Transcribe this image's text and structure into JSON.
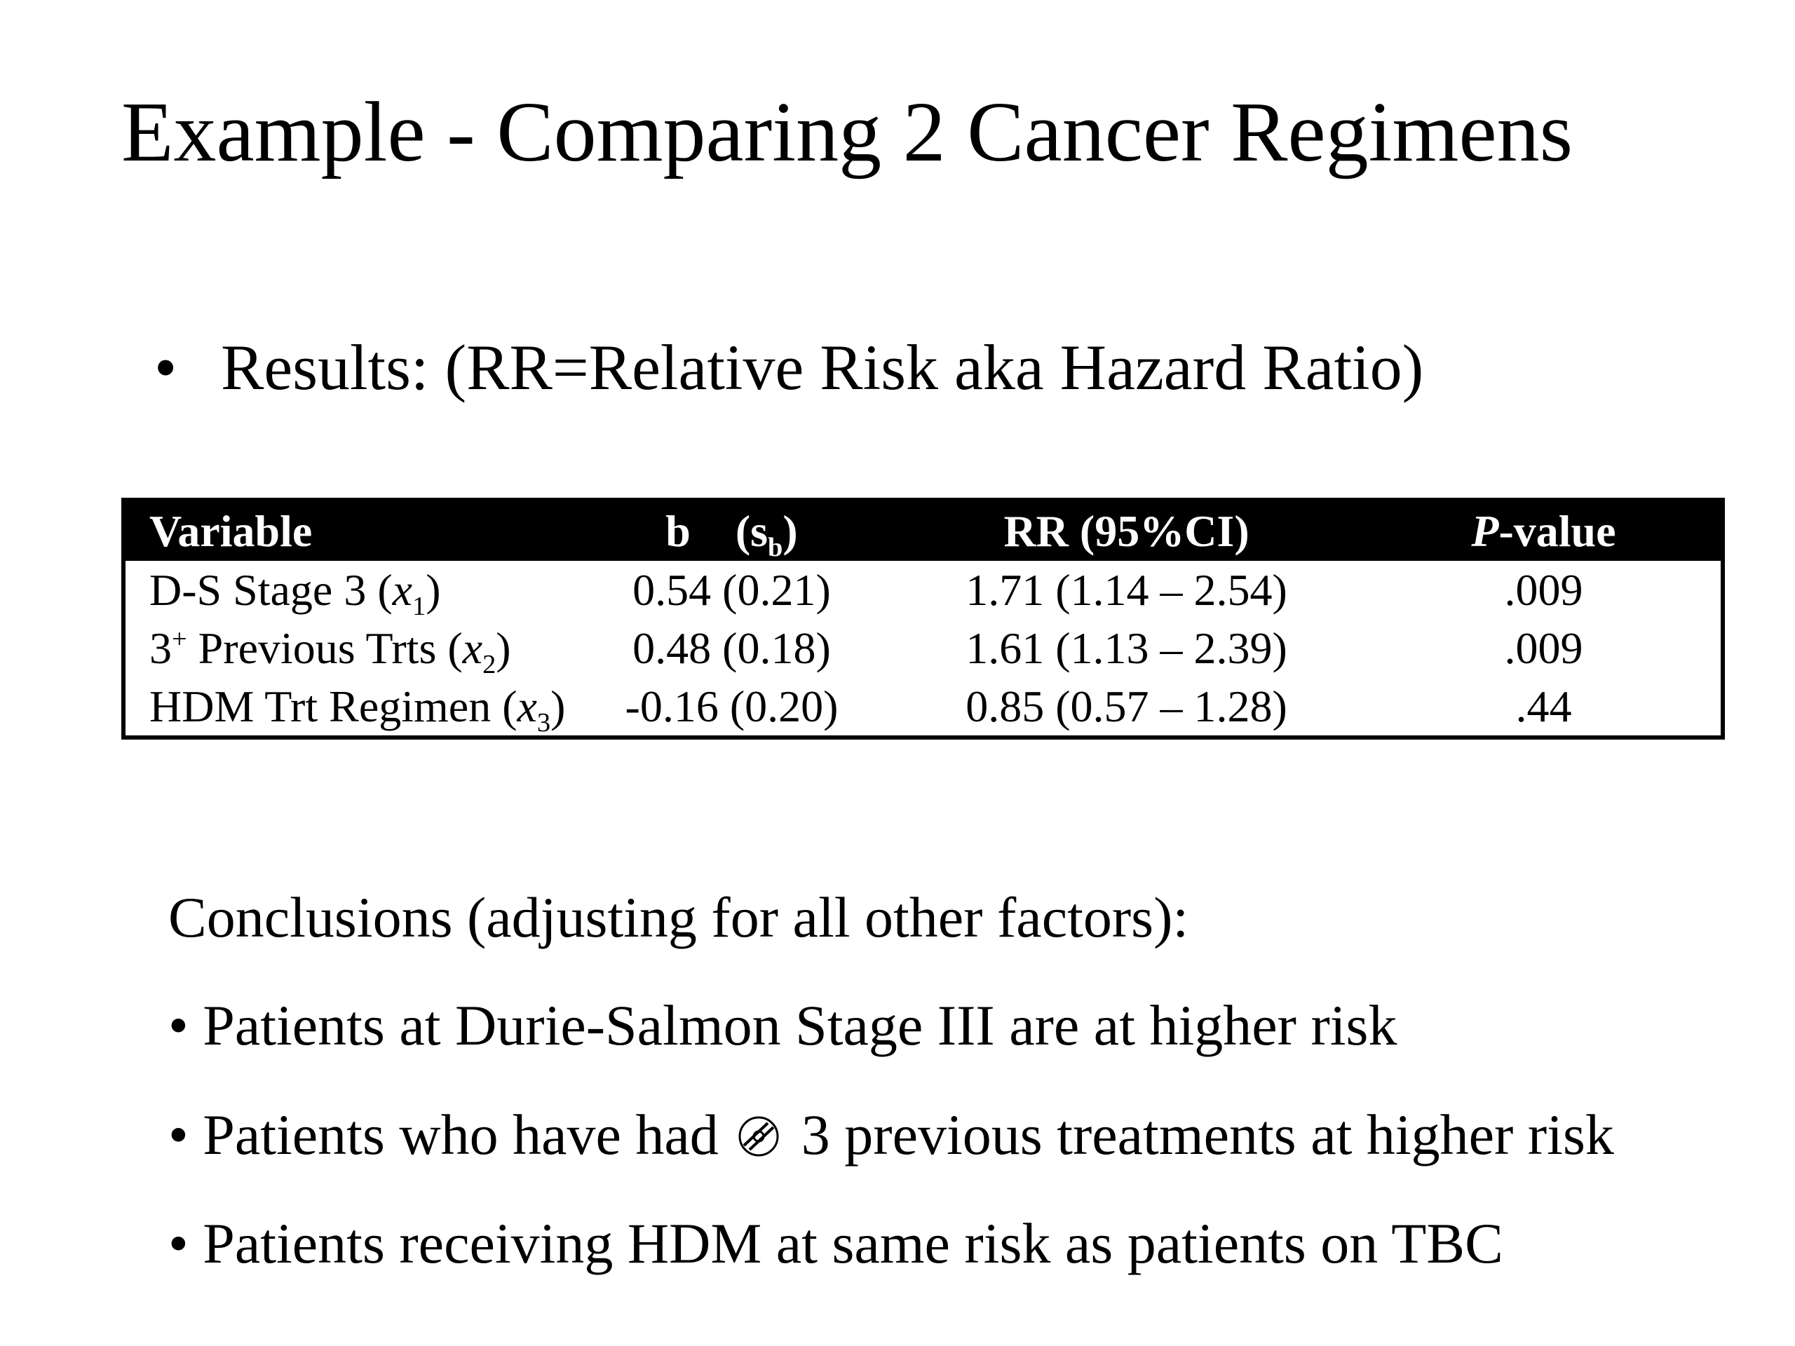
{
  "slide": {
    "title": "Example - Comparing 2 Cancer Regimens",
    "results_bullet": "•",
    "results_text": "Results: (RR=Relative Risk aka Hazard Ratio)"
  },
  "table": {
    "headers": {
      "variable": "Variable",
      "b": "b",
      "se_s": "s",
      "se_sub": "b",
      "rr": "RR (95%CI)",
      "p_italic": "P",
      "p_rest": "-value"
    },
    "rows": [
      {
        "var_pre": "D-S Stage 3 (",
        "var_x": "x",
        "var_sub": "1",
        "var_post": ")",
        "var_sup": "",
        "b": "0.54 (0.21)",
        "rr": "1.71  (1.14 – 2.54)",
        "p": ".009"
      },
      {
        "var_lead": "3",
        "var_sup": "+",
        "var_pre": " Previous Trts (",
        "var_x": "x",
        "var_sub": "2",
        "var_post": ")",
        "b": "0.48 (0.18)",
        "rr": "1.61 (1.13 – 2.39)",
        "p": ".009"
      },
      {
        "var_pre": "HDM Trt Regimen (",
        "var_x": "x",
        "var_sub": "3",
        "var_post": ")",
        "var_sup": "",
        "b": "-0.16 (0.20)",
        "rr": "0.85 (0.57 – 1.28)",
        "p": ".44"
      }
    ]
  },
  "conclusions": {
    "heading": "Conclusions (adjusting for all other factors):",
    "item1": "• Patients at Durie-Salmon Stage III are at higher risk",
    "item2_pre": "• Patients who have had",
    "item2_icon": "greater-or-equal-glyph-icon",
    "item2_post": "3 previous treatments at higher risk",
    "item3": "• Patients receiving HDM at same risk as patients on TBC"
  }
}
